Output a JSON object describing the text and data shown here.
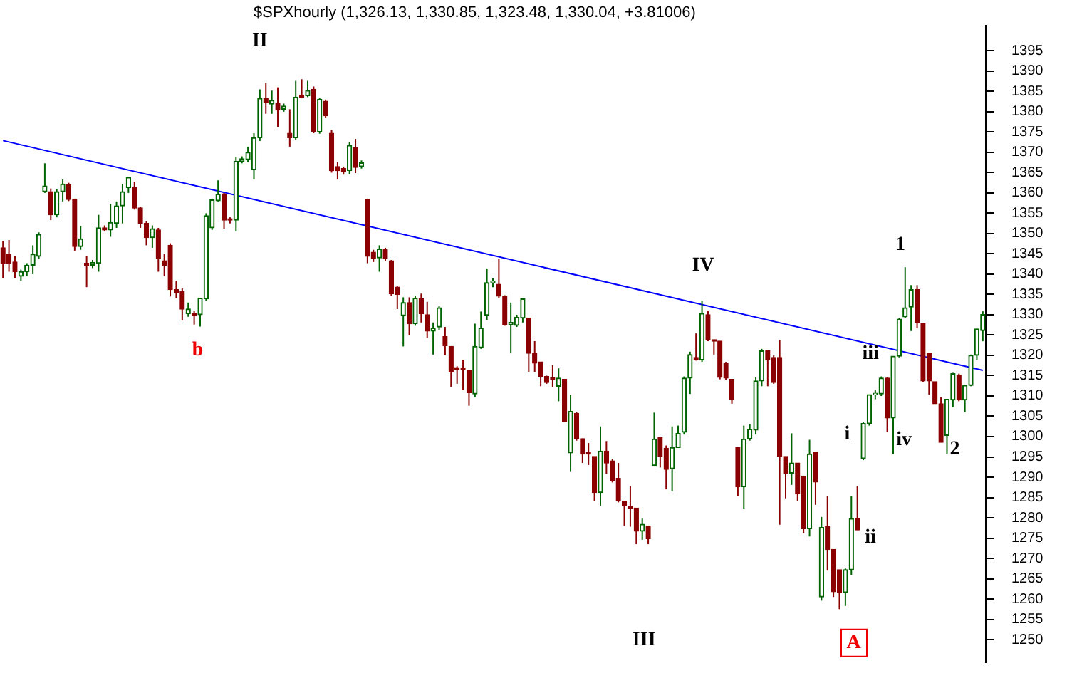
{
  "chart_data": {
    "type": "candlestick",
    "title": "$SPXhourly (1,326.13, 1,330.85, 1,323.48, 1,330.04, +3.81006)",
    "categories": [
      null,
      null,
      null,
      null,
      null,
      null,
      null,
      null,
      null,
      null,
      null,
      null,
      null,
      null,
      null,
      null,
      null,
      null,
      null,
      null,
      null,
      null,
      null,
      null,
      null,
      null,
      null,
      null,
      null,
      null,
      null,
      null,
      null,
      null,
      null,
      null,
      null,
      null,
      null,
      null,
      null,
      null,
      null,
      null,
      null,
      null,
      null,
      null,
      null,
      null,
      null,
      null,
      null,
      null,
      null,
      null,
      null,
      null,
      null,
      null,
      null,
      null,
      null,
      null,
      null,
      null,
      null,
      null,
      null,
      null,
      null,
      null,
      null,
      null,
      null,
      null,
      null,
      null,
      null,
      null,
      null,
      null,
      null,
      null,
      null,
      null,
      null,
      null,
      null,
      null,
      null,
      null,
      null,
      null,
      null,
      null,
      null,
      null,
      null,
      null,
      null,
      null,
      null,
      null,
      null,
      null,
      null,
      null,
      null,
      null,
      null,
      null,
      null,
      null,
      null,
      null,
      null,
      null,
      null,
      null,
      null,
      null,
      null,
      null,
      null,
      null,
      null,
      null,
      null,
      null,
      null,
      null,
      null,
      null,
      null,
      null,
      null,
      null,
      null,
      null,
      null,
      null,
      null,
      null,
      null,
      null,
      null,
      null,
      null,
      null,
      null,
      null,
      null,
      null,
      null,
      null,
      null,
      null,
      null,
      null,
      null,
      null,
      null,
      null,
      null
    ],
    "series": [
      {
        "type": "candlestick",
        "ohlc": [
          [
            1346.5,
            1348.2,
            1339.0,
            1342.7
          ],
          [
            1344.9,
            1348.4,
            1340.6,
            1342.7
          ],
          [
            1343.0,
            1344.4,
            1339.0,
            1340.6
          ],
          [
            1339.5,
            1341.1,
            1338.4,
            1340.6
          ],
          [
            1340.6,
            1342.7,
            1339.5,
            1342.2
          ],
          [
            1342.2,
            1347.1,
            1340.0,
            1344.9
          ],
          [
            1344.4,
            1350.3,
            1343.8,
            1349.8
          ],
          [
            1360.3,
            1367.3,
            1360.0,
            1361.7
          ],
          [
            1360.3,
            1361.1,
            1353.3,
            1354.6
          ],
          [
            1354.6,
            1361.0,
            1354.0,
            1360.3
          ],
          [
            1360.3,
            1363.3,
            1357.9,
            1362.2
          ],
          [
            1362.0,
            1362.5,
            1358.0,
            1358.4
          ],
          [
            1358.4,
            1358.6,
            1345.8,
            1346.8
          ],
          [
            1346.8,
            1351.9,
            1346.0,
            1348.7
          ],
          [
            1342.7,
            1344.4,
            1336.8,
            1342.2
          ],
          [
            1342.2,
            1343.5,
            1341.5,
            1342.9
          ],
          [
            1342.7,
            1354.6,
            1340.6,
            1351.4
          ],
          [
            1351.4,
            1352.0,
            1350.5,
            1350.9
          ],
          [
            1350.9,
            1357.3,
            1349.2,
            1352.7
          ],
          [
            1352.5,
            1357.9,
            1351.4,
            1356.8
          ],
          [
            1356.8,
            1362.2,
            1352.5,
            1360.3
          ],
          [
            1361.3,
            1363.8,
            1360.0,
            1363.8
          ],
          [
            1361.3,
            1362.7,
            1355.9,
            1356.3
          ],
          [
            1356.3,
            1356.5,
            1351.4,
            1352.5
          ],
          [
            1352.5,
            1353.0,
            1347.1,
            1349.0
          ],
          [
            1349.0,
            1352.0,
            1346.5,
            1351.2
          ],
          [
            1350.9,
            1351.4,
            1340.6,
            1343.8
          ],
          [
            1343.3,
            1344.9,
            1339.5,
            1342.2
          ],
          [
            1347.1,
            1347.6,
            1334.5,
            1336.2
          ],
          [
            1336.2,
            1338.4,
            1334.1,
            1335.4
          ],
          [
            1335.7,
            1336.5,
            1328.6,
            1331.4
          ],
          [
            1330.3,
            1333.0,
            1329.5,
            1331.4
          ],
          [
            1330.3,
            1331.0,
            1327.6,
            1329.8
          ],
          [
            1330.0,
            1334.1,
            1327.1,
            1334.1
          ],
          [
            1333.9,
            1355.0,
            1333.5,
            1354.4
          ],
          [
            1351.4,
            1358.6,
            1350.9,
            1358.3
          ],
          [
            1358.1,
            1363.1,
            1357.9,
            1359.7
          ],
          [
            1359.8,
            1360.0,
            1351.2,
            1353.3
          ],
          [
            1353.5,
            1354.0,
            1352.5,
            1353.3
          ],
          [
            1353.3,
            1368.9,
            1350.5,
            1367.8
          ],
          [
            1367.8,
            1369.0,
            1367.3,
            1368.4
          ],
          [
            1368.2,
            1371.4,
            1367.6,
            1370.0
          ],
          [
            1365.7,
            1374.7,
            1363.3,
            1373.6
          ],
          [
            1373.6,
            1385.5,
            1372.8,
            1383.3
          ],
          [
            1383.3,
            1387.1,
            1379.5,
            1382.2
          ],
          [
            1381.9,
            1385.2,
            1379.5,
            1382.8
          ],
          [
            1382.2,
            1386.0,
            1376.3,
            1380.4
          ],
          [
            1380.6,
            1382.0,
            1380.0,
            1381.4
          ],
          [
            1374.7,
            1380.6,
            1371.4,
            1373.6
          ],
          [
            1373.6,
            1387.6,
            1373.0,
            1383.6
          ],
          [
            1384.1,
            1388.0,
            1383.3,
            1383.6
          ],
          [
            1383.9,
            1387.6,
            1383.6,
            1385.2
          ],
          [
            1385.5,
            1386.2,
            1374.7,
            1375.2
          ],
          [
            1375.0,
            1383.3,
            1374.6,
            1383.0
          ],
          [
            1382.6,
            1383.0,
            1378.5,
            1379.0
          ],
          [
            1374.7,
            1375.5,
            1365.0,
            1365.5
          ],
          [
            1366.5,
            1367.6,
            1363.3,
            1365.5
          ],
          [
            1366.0,
            1366.5,
            1364.5,
            1365.2
          ],
          [
            1365.5,
            1372.5,
            1364.6,
            1371.7
          ],
          [
            1371.1,
            1373.3,
            1364.9,
            1366.3
          ],
          [
            1366.5,
            1368.0,
            1366.0,
            1367.4
          ],
          [
            1358.4,
            1358.6,
            1342.7,
            1344.4
          ],
          [
            1345.4,
            1346.0,
            1343.0,
            1343.8
          ],
          [
            1344.0,
            1347.1,
            1340.6,
            1346.2
          ],
          [
            1346.0,
            1346.5,
            1343.3,
            1343.8
          ],
          [
            1343.3,
            1343.5,
            1334.6,
            1335.2
          ],
          [
            1336.8,
            1337.0,
            1331.4,
            1335.0
          ],
          [
            1329.8,
            1334.3,
            1322.2,
            1333.0
          ],
          [
            1333.0,
            1334.3,
            1324.9,
            1327.8
          ],
          [
            1327.8,
            1334.6,
            1327.3,
            1334.1
          ],
          [
            1333.9,
            1335.2,
            1328.1,
            1330.3
          ],
          [
            1330.0,
            1333.2,
            1324.3,
            1326.0
          ],
          [
            1326.0,
            1328.1,
            1320.2,
            1326.7
          ],
          [
            1327.0,
            1332.1,
            1326.3,
            1331.7
          ],
          [
            1324.6,
            1327.0,
            1320.0,
            1322.4
          ],
          [
            1322.2,
            1322.2,
            1312.2,
            1315.9
          ],
          [
            1317.0,
            1317.3,
            1313.0,
            1316.5
          ],
          [
            1316.8,
            1318.9,
            1311.4,
            1316.6
          ],
          [
            1316.2,
            1316.2,
            1307.6,
            1310.8
          ],
          [
            1310.5,
            1327.8,
            1309.7,
            1322.2
          ],
          [
            1321.9,
            1330.8,
            1321.6,
            1326.7
          ],
          [
            1329.9,
            1341.4,
            1328.7,
            1337.9
          ],
          [
            1337.9,
            1339.0,
            1336.8,
            1338.1
          ],
          [
            1337.5,
            1343.8,
            1334.1,
            1334.6
          ],
          [
            1334.6,
            1334.8,
            1327.3,
            1327.6
          ],
          [
            1327.6,
            1333.0,
            1320.5,
            1328.1
          ],
          [
            1327.4,
            1330.0,
            1327.0,
            1329.4
          ],
          [
            1329.2,
            1334.1,
            1328.1,
            1333.9
          ],
          [
            1329.2,
            1329.2,
            1315.9,
            1320.5
          ],
          [
            1320.5,
            1323.5,
            1315.9,
            1318.1
          ],
          [
            1318.4,
            1318.4,
            1312.4,
            1314.8
          ],
          [
            1314.8,
            1315.0,
            1313.0,
            1313.3
          ],
          [
            1314.6,
            1317.6,
            1312.2,
            1314.1
          ],
          [
            1312.4,
            1316.8,
            1308.7,
            1314.4
          ],
          [
            1314.1,
            1314.1,
            1303.6,
            1303.8
          ],
          [
            1296.0,
            1310.3,
            1291.3,
            1306.2
          ],
          [
            1305.7,
            1306.0,
            1299.0,
            1299.5
          ],
          [
            1299.5,
            1299.5,
            1293.5,
            1295.7
          ],
          [
            1296.0,
            1298.4,
            1293.0,
            1295.7
          ],
          [
            1295.1,
            1295.1,
            1284.1,
            1286.2
          ],
          [
            1286.2,
            1302.5,
            1283.0,
            1296.4
          ],
          [
            1296.4,
            1298.9,
            1290.8,
            1293.5
          ],
          [
            1294.0,
            1294.5,
            1288.7,
            1289.2
          ],
          [
            1289.7,
            1293.5,
            1283.8,
            1284.1
          ],
          [
            1284.1,
            1284.1,
            1278.0,
            1283.0
          ],
          [
            1282.7,
            1287.8,
            1277.8,
            1282.4
          ],
          [
            1282.4,
            1282.4,
            1273.5,
            1276.7
          ],
          [
            1276.7,
            1279.8,
            1274.6,
            1278.4
          ],
          [
            1278.0,
            1278.0,
            1273.5,
            1274.8
          ],
          [
            1292.9,
            1305.9,
            1292.9,
            1299.4
          ],
          [
            1299.7,
            1299.7,
            1292.4,
            1295.1
          ],
          [
            1297.1,
            1297.8,
            1287.0,
            1291.9
          ],
          [
            1292.1,
            1302.5,
            1286.5,
            1297.3
          ],
          [
            1297.3,
            1302.7,
            1297.3,
            1300.8
          ],
          [
            1301.1,
            1314.8,
            1300.5,
            1314.4
          ],
          [
            1314.4,
            1320.9,
            1310.5,
            1320.2
          ],
          [
            1319.5,
            1325.4,
            1318.7,
            1318.9
          ],
          [
            1318.9,
            1333.5,
            1318.4,
            1330.3
          ],
          [
            1330.0,
            1331.0,
            1323.5,
            1323.8
          ],
          [
            1323.8,
            1323.8,
            1320.2,
            1323.5
          ],
          [
            1323.5,
            1323.5,
            1314.1,
            1314.6
          ],
          [
            1318.1,
            1318.4,
            1314.0,
            1314.4
          ],
          [
            1314.1,
            1314.1,
            1308.1,
            1309.2
          ],
          [
            1297.3,
            1297.3,
            1285.4,
            1287.6
          ],
          [
            1287.6,
            1302.7,
            1282.1,
            1299.4
          ],
          [
            1299.4,
            1303.0,
            1299.0,
            1301.8
          ],
          [
            1301.6,
            1314.6,
            1300.5,
            1313.7
          ],
          [
            1313.7,
            1321.6,
            1312.4,
            1321.1
          ],
          [
            1321.1,
            1321.1,
            1312.4,
            1318.9
          ],
          [
            1319.5,
            1320.0,
            1313.0,
            1313.3
          ],
          [
            1319.5,
            1323.8,
            1278.3,
            1295.1
          ],
          [
            1295.1,
            1295.1,
            1284.8,
            1291.0
          ],
          [
            1291.0,
            1300.8,
            1288.1,
            1293.5
          ],
          [
            1293.5,
            1293.5,
            1284.1,
            1285.9
          ],
          [
            1290.3,
            1290.3,
            1276.2,
            1277.3
          ],
          [
            1277.3,
            1299.2,
            1275.4,
            1295.7
          ],
          [
            1296.2,
            1296.2,
            1283.2,
            1288.8
          ],
          [
            1260.5,
            1280.2,
            1259.6,
            1277.6
          ],
          [
            1277.8,
            1285.4,
            1267.0,
            1272.2
          ],
          [
            1272.2,
            1272.2,
            1260.5,
            1261.8
          ],
          [
            1267.2,
            1267.2,
            1257.5,
            1261.6
          ],
          [
            1261.6,
            1267.5,
            1258.3,
            1267.2
          ],
          [
            1267.2,
            1285.4,
            1265.9,
            1279.8
          ],
          [
            1279.8,
            1287.8,
            1277.0,
            1277.0
          ],
          [
            1294.6,
            1303.5,
            1294.2,
            1303.2
          ],
          [
            1303.2,
            1310.3,
            1302.7,
            1310.3
          ],
          [
            1310.3,
            1311.4,
            1309.2,
            1310.5
          ],
          [
            1310.5,
            1314.8,
            1310.0,
            1314.4
          ],
          [
            1314.4,
            1314.6,
            1301.1,
            1304.6
          ],
          [
            1304.6,
            1319.8,
            1295.7,
            1319.8
          ],
          [
            1319.8,
            1329.2,
            1319.5,
            1328.9
          ],
          [
            1329.5,
            1341.7,
            1329.2,
            1331.7
          ],
          [
            1331.9,
            1337.3,
            1326.0,
            1336.2
          ],
          [
            1336.2,
            1337.3,
            1326.7,
            1328.1
          ],
          [
            1327.8,
            1327.8,
            1313.5,
            1313.7
          ],
          [
            1320.5,
            1320.5,
            1310.3,
            1313.7
          ],
          [
            1313.5,
            1313.5,
            1308.1,
            1308.1
          ],
          [
            1308.1,
            1309.7,
            1298.6,
            1298.6
          ],
          [
            1300.3,
            1309.2,
            1295.7,
            1309.2
          ],
          [
            1309.0,
            1315.7,
            1307.2,
            1315.5
          ],
          [
            1315.2,
            1315.5,
            1308.7,
            1309.0
          ],
          [
            1309.0,
            1312.6,
            1306.0,
            1312.6
          ],
          [
            1312.6,
            1320.2,
            1312.4,
            1320.0
          ],
          [
            1320.0,
            1326.5,
            1318.9,
            1326.5
          ],
          [
            1326.13,
            1330.85,
            1323.48,
            1330.04
          ]
        ],
        "colors": [
          "#8b0000",
          "#8b0000",
          "#8b0000",
          "#006400",
          "#006400",
          "#006400",
          "#006400",
          "#006400",
          "#8b0000",
          "#006400",
          "#006400",
          "#8b0000",
          "#8b0000",
          "#006400",
          "#8b0000",
          "#006400",
          "#006400",
          "#8b0000",
          "#006400",
          "#006400",
          "#006400",
          "#006400",
          "#8b0000",
          "#8b0000",
          "#8b0000",
          "#006400",
          "#8b0000",
          "#8b0000",
          "#8b0000",
          "#8b0000",
          "#8b0000",
          "#006400",
          "#8b0000",
          "#006400",
          "#006400",
          "#006400",
          "#006400",
          "#8b0000",
          "#8b0000",
          "#006400",
          "#006400",
          "#006400",
          "#006400",
          "#006400",
          "#8b0000",
          "#006400",
          "#8b0000",
          "#006400",
          "#8b0000",
          "#006400",
          "#8b0000",
          "#006400",
          "#8b0000",
          "#006400",
          "#8b0000",
          "#8b0000",
          "#8b0000",
          "#8b0000",
          "#006400",
          "#8b0000",
          "#006400",
          "#8b0000",
          "#8b0000",
          "#006400",
          "#8b0000",
          "#8b0000",
          "#8b0000",
          "#006400",
          "#8b0000",
          "#006400",
          "#8b0000",
          "#8b0000",
          "#006400",
          "#006400",
          "#8b0000",
          "#8b0000",
          "#8b0000",
          "#8b0000",
          "#8b0000",
          "#006400",
          "#006400",
          "#006400",
          "#006400",
          "#8b0000",
          "#8b0000",
          "#006400",
          "#006400",
          "#006400",
          "#8b0000",
          "#8b0000",
          "#8b0000",
          "#8b0000",
          "#8b0000",
          "#006400",
          "#8b0000",
          "#006400",
          "#8b0000",
          "#8b0000",
          "#8b0000",
          "#8b0000",
          "#006400",
          "#8b0000",
          "#8b0000",
          "#8b0000",
          "#8b0000",
          "#8b0000",
          "#8b0000",
          "#006400",
          "#8b0000",
          "#006400",
          "#8b0000",
          "#8b0000",
          "#006400",
          "#006400",
          "#006400",
          "#006400",
          "#8b0000",
          "#006400",
          "#8b0000",
          "#8b0000",
          "#8b0000",
          "#8b0000",
          "#8b0000",
          "#8b0000",
          "#006400",
          "#006400",
          "#006400",
          "#006400",
          "#8b0000",
          "#8b0000",
          "#8b0000",
          "#8b0000",
          "#006400",
          "#8b0000",
          "#8b0000",
          "#006400",
          "#8b0000",
          "#006400",
          "#8b0000",
          "#8b0000",
          "#8b0000",
          "#006400",
          "#006400",
          "#8b0000",
          "#006400",
          "#006400",
          "#006400",
          "#006400",
          "#8b0000",
          "#006400",
          "#006400",
          "#006400",
          "#006400",
          "#8b0000",
          "#8b0000",
          "#8b0000",
          "#8b0000",
          "#8b0000",
          "#006400",
          "#006400",
          "#8b0000",
          "#006400",
          "#006400",
          "#006400",
          "#006400"
        ]
      },
      {
        "type": "line",
        "color": "#0000ff",
        "values": [
          1372.9,
          null,
          null,
          null,
          null,
          null,
          null,
          null,
          null,
          null,
          null,
          null,
          null,
          null,
          null,
          null,
          null,
          null,
          null,
          null,
          null,
          null,
          null,
          null,
          null,
          null,
          null,
          null,
          null,
          null,
          null,
          null,
          null,
          null,
          null,
          null,
          null,
          null,
          null,
          null,
          null,
          null,
          null,
          null,
          null,
          null,
          null,
          null,
          null,
          null,
          null,
          null,
          null,
          null,
          null,
          null,
          null,
          null,
          null,
          null,
          null,
          null,
          null,
          null,
          null,
          null,
          null,
          null,
          null,
          null,
          null,
          null,
          null,
          null,
          null,
          null,
          null,
          null,
          null,
          null,
          null,
          null,
          null,
          null,
          null,
          null,
          null,
          null,
          null,
          null,
          null,
          null,
          null,
          null,
          null,
          null,
          null,
          null,
          null,
          null,
          null,
          null,
          null,
          null,
          null,
          null,
          null,
          null,
          null,
          null,
          null,
          null,
          null,
          null,
          null,
          null,
          null,
          null,
          null,
          null,
          null,
          null,
          null,
          null,
          null,
          null,
          null,
          null,
          null,
          null,
          null,
          null,
          null,
          null,
          null,
          null,
          null,
          null,
          null,
          null,
          null,
          null,
          null,
          null,
          null,
          null,
          null,
          null,
          null,
          null,
          null,
          null,
          null,
          null,
          null,
          null,
          null,
          null,
          null,
          null,
          null,
          null,
          null,
          null,
          1316.3
        ]
      }
    ],
    "ylim": [
      1244.4,
      1401.2
    ],
    "tick_labels": "y",
    "yticks": [
      1250,
      1255,
      1260,
      1265,
      1270,
      1275,
      1280,
      1285,
      1290,
      1295,
      1300,
      1305,
      1310,
      1315,
      1320,
      1325,
      1330,
      1335,
      1340,
      1345,
      1350,
      1355,
      1360,
      1365,
      1370,
      1375,
      1380,
      1385,
      1390,
      1395
    ],
    "annotations": [
      "II",
      "b",
      "III",
      "IV",
      "1",
      "iii",
      "i",
      "iv",
      "ii",
      "2",
      "A"
    ]
  }
}
